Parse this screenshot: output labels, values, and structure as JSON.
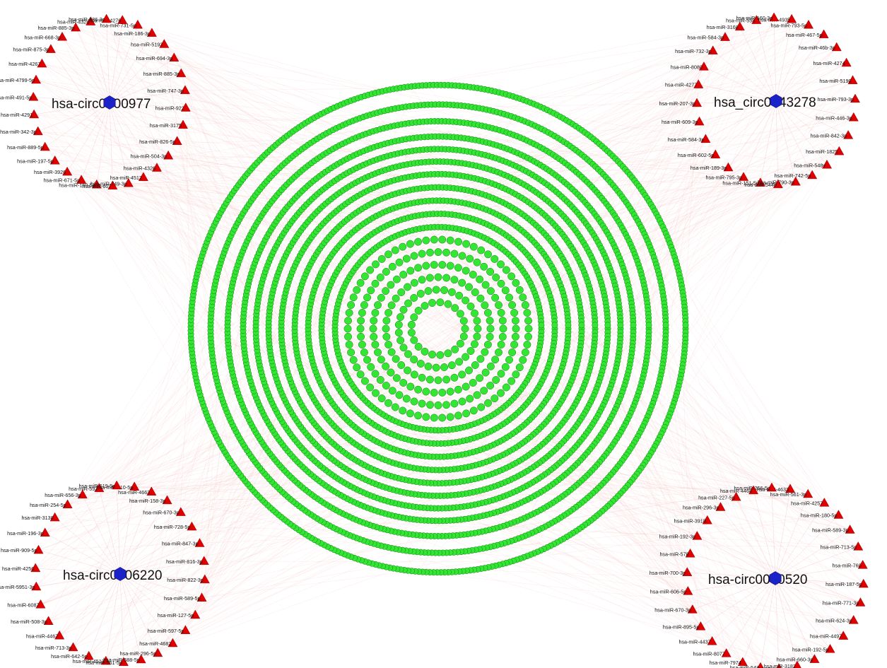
{
  "colors": {
    "background": "#ffffff",
    "edge": "#f4b6b6",
    "mirna_node": "#e00000",
    "mirna_node_stroke": "#7a0000",
    "circrna_node": "#1a22c8",
    "mrna_node": "#33e633",
    "mrna_node_stroke": "#0f7a0f"
  },
  "node_shapes": {
    "circrna": "hexagon",
    "mirna": "triangle",
    "mrna": "circle"
  },
  "clusters": [
    {
      "id": "top-left",
      "circrna": {
        "label": "hsa-circ0000977"
      },
      "mirnas": [
        "hsa-miR-4324",
        "hsa-miR-885-3p",
        "hsa-miR-668-3p",
        "hsa-miR-875-3p",
        "hsa-miR-4267",
        "hsa-miR-4799-5p",
        "hsa-miR-491-5p",
        "hsa-miR-4291",
        "hsa-miR-342-3p",
        "hsa-miR-889-5p",
        "hsa-miR-197-5p",
        "hsa-miR-3926",
        "hsa-miR-671-5p",
        "hsa-miR-160-5p",
        "hsa-miR-607",
        "hsa-miR-749-3p",
        "hsa-miR-4512",
        "hsa-miR-4326",
        "hsa-miR-504-3p",
        "hsa-miR-826-5p",
        "hsa-miR-3175",
        "hsa-miR-922",
        "hsa-miR-747-3p",
        "hsa-miR-885-3p",
        "hsa-miR-694-3p",
        "hsa-miR-5193",
        "hsa-miR-186-3p",
        "hsa-miR-731-5p",
        "hsa-miR-4276",
        "hsa-miR-586-3p"
      ]
    },
    {
      "id": "top-right",
      "circrna": {
        "label": "hsa_circ0043278"
      },
      "mirnas": [
        "hsa-miR-558",
        "hsa-miR-3168",
        "hsa-miR-584-3p",
        "hsa-miR-732-3p",
        "hsa-miR-8080",
        "hsa-miR-4277",
        "hsa-miR-207-3p",
        "hsa-miR-609-3p",
        "hsa-miR-584-3p",
        "hsa-miR-602-5p",
        "hsa-miR-189-3p",
        "hsa-miR-795-3p",
        "hsa-miR-151-5p",
        "hsa-miR-544b",
        "hsa-miR-790-3p",
        "hsa-miR-742-5p",
        "hsa-miR-548v",
        "hsa-miR-1825",
        "hsa-miR-842-3p",
        "hsa-miR-446-3p",
        "hsa-miR-793-3p",
        "hsa-miR-5190",
        "hsa-miR-4274",
        "hsa-miR-46b-3p",
        "hsa-miR-467-5p",
        "hsa-miR-793-5p",
        "hsa-miR-4935",
        "hsa-miR-160-3p"
      ]
    },
    {
      "id": "bottom-left",
      "circrna": {
        "label": "hsa-circ0006220"
      },
      "mirnas": [
        "hsa-miR-592",
        "hsa-miR-656-3p",
        "hsa-miR-254-5p",
        "hsa-miR-3138",
        "hsa-miR-196-3p",
        "hsa-miR-909-5p",
        "hsa-miR-4256",
        "hsa-miR-5951-3p",
        "hsa-miR-6087",
        "hsa-miR-508-3p",
        "hsa-miR-4467",
        "hsa-miR-713-3p",
        "hsa-miR-642-5p",
        "hsa-miR-4512",
        "hsa-miR-561-5p",
        "hsa-miR-588-5p",
        "hsa-miR-296-5p",
        "hsa-miR-4682",
        "hsa-miR-597-5p",
        "hsa-miR-127-5p",
        "hsa-miR-589-5p",
        "hsa-miR-822-3p",
        "hsa-miR-816-3p",
        "hsa-miR-847-3p",
        "hsa-miR-728-5p",
        "hsa-miR-670-3p",
        "hsa-miR-158-3p",
        "hsa-miR-4663",
        "hsa-miR-910-5p",
        "hsa-miR-619-5p"
      ]
    },
    {
      "id": "bottom-right",
      "circrna": {
        "label": "hsa-circ0000520"
      },
      "mirnas": [
        "hsa-miR-4468",
        "hsa-miR-227-5p",
        "hsa-miR-296-3p",
        "hsa-miR-3918",
        "hsa-miR-192-3p",
        "hsa-miR-578",
        "hsa-miR-700-3p",
        "hsa-miR-606-5p",
        "hsa-miR-670-3p",
        "hsa-miR-895-5p",
        "hsa-miR-4437",
        "hsa-miR-8077",
        "hsa-miR-7974",
        "hsa-miR-547",
        "hsa-miR-194-3p",
        "hsa-miR-3182",
        "hsa-miR-660-3p",
        "hsa-miR-192-5p",
        "hsa-miR-4497",
        "hsa-miR-624-3p",
        "hsa-miR-771-3p",
        "hsa-miR-187-5p",
        "hsa-miR-760",
        "hsa-miR-713-5p",
        "hsa-miR-589-3p",
        "hsa-miR-180-5p",
        "hsa-miR-4257",
        "hsa-miR-561-3p",
        "hsa-miR-4633",
        "hsa-miR-256-5p"
      ]
    }
  ]
}
